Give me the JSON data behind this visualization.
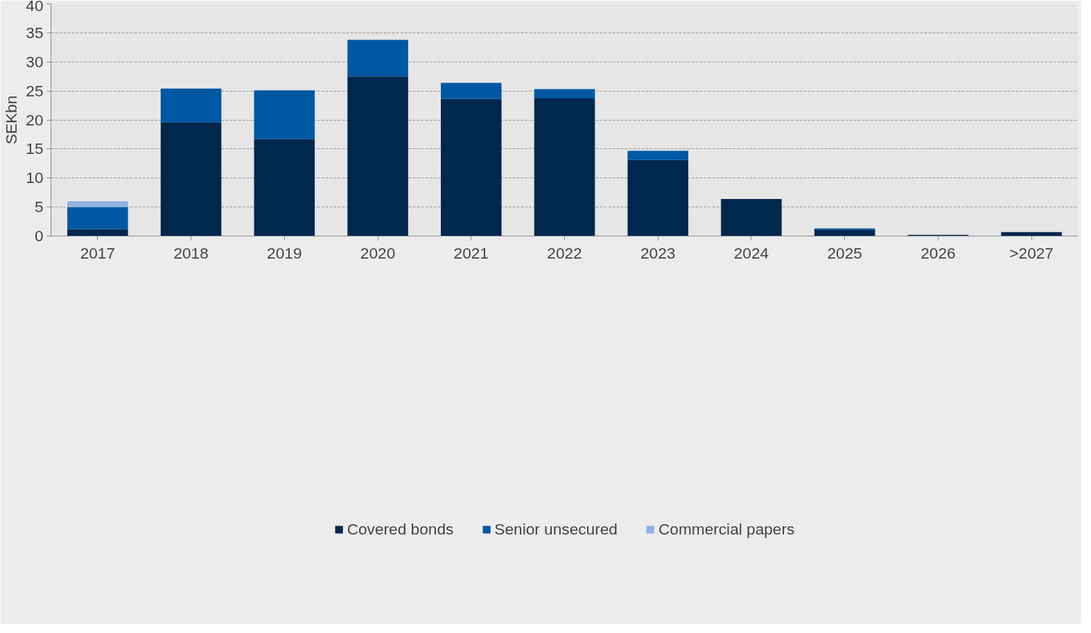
{
  "chart_data": {
    "type": "bar",
    "stacked": true,
    "ylabel": "SEKbn",
    "categories": [
      "2017",
      "2018",
      "2019",
      "2020",
      "2021",
      "2022",
      "2023",
      "2024",
      "2025",
      "2026",
      ">2027"
    ],
    "series": [
      {
        "name": "Covered bonds",
        "color": "#00284f",
        "values": [
          1.2,
          19.6,
          16.7,
          27.5,
          23.6,
          23.7,
          13.1,
          6.4,
          1.1,
          0.2,
          0.7
        ]
      },
      {
        "name": "Senior unsecured",
        "color": "#0058a3",
        "values": [
          3.8,
          5.8,
          8.4,
          6.3,
          2.8,
          1.6,
          1.6,
          null,
          0.2,
          null,
          null
        ]
      },
      {
        "name": "Commercial papers",
        "color": "#8db3e2",
        "values": [
          1.0,
          null,
          null,
          null,
          null,
          null,
          null,
          null,
          null,
          null,
          null
        ]
      }
    ],
    "ylim": [
      0,
      40
    ],
    "yticks": [
      0,
      5,
      10,
      15,
      20,
      25,
      30,
      35,
      40
    ],
    "grid": "y",
    "legend": "bottom"
  }
}
